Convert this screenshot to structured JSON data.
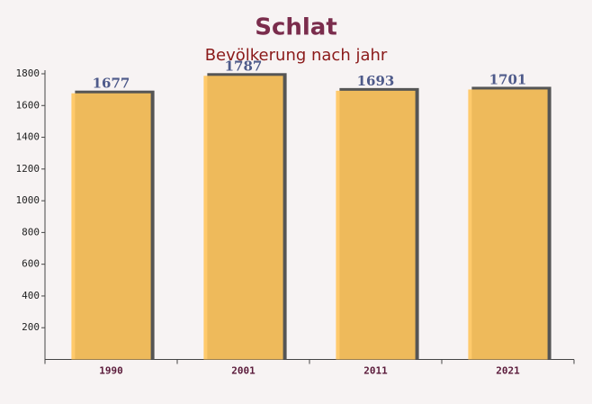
{
  "chart_data": {
    "type": "bar",
    "title": "Schlat",
    "subtitle": "Bevölkerung nach jahr",
    "categories": [
      "1990",
      "2001",
      "2011",
      "2021"
    ],
    "values": [
      1677,
      1787,
      1693,
      1701
    ],
    "color": "#ffc55c",
    "ylim": [
      0,
      1800
    ],
    "yticks": [
      200,
      400,
      600,
      800,
      1000,
      1200,
      1400,
      1600,
      1800
    ],
    "grid": false
  }
}
